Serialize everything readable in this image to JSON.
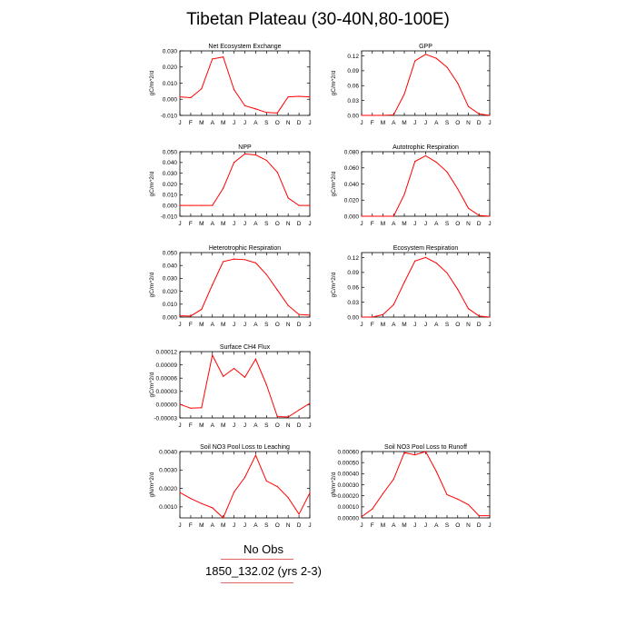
{
  "title": "Tibetan Plateau (30-40N,80-100E)",
  "footer": {
    "line1": "No Obs",
    "line2": "1850_132.02 (yrs 2-3)"
  },
  "colors": {
    "line": "#ff0000",
    "rule": "#e06666",
    "axis": "#000000"
  },
  "chart_data": [
    {
      "type": "line",
      "title": "Net Ecosystem Exchange",
      "ylabel": "gC/m^2/d",
      "categories": [
        "J",
        "F",
        "M",
        "A",
        "M",
        "J",
        "J",
        "A",
        "S",
        "O",
        "N",
        "D",
        "J"
      ],
      "ylim": [
        -0.01,
        0.03
      ],
      "yticks": [
        "0.030",
        "0.020",
        "0.010",
        "0.000",
        "-0.010"
      ],
      "values": [
        0.0015,
        0.001,
        0.0065,
        0.025,
        0.0262,
        0.006,
        -0.004,
        -0.006,
        -0.0082,
        -0.0085,
        0.0015,
        0.0018,
        0.0015
      ]
    },
    {
      "type": "line",
      "title": "GPP",
      "ylabel": "gC/m^2/d",
      "categories": [
        "J",
        "F",
        "M",
        "A",
        "M",
        "J",
        "J",
        "A",
        "S",
        "O",
        "N",
        "D",
        "J"
      ],
      "ylim": [
        0,
        0.13
      ],
      "yticks": [
        "0.12",
        "0.09",
        "0.06",
        "0.03",
        "0.00"
      ],
      "values": [
        0.0,
        0.0,
        0.0,
        0.001,
        0.043,
        0.11,
        0.123,
        0.115,
        0.097,
        0.065,
        0.018,
        0.003,
        0.0
      ]
    },
    {
      "type": "line",
      "title": "NPP",
      "ylabel": "gC/m^2/d",
      "categories": [
        "J",
        "F",
        "M",
        "A",
        "M",
        "J",
        "J",
        "A",
        "S",
        "O",
        "N",
        "D",
        "J"
      ],
      "ylim": [
        -0.01,
        0.05
      ],
      "yticks": [
        "0.050",
        "0.040",
        "0.030",
        "0.020",
        "0.010",
        "0.000",
        "-0.010"
      ],
      "values": [
        0.0,
        0.0,
        0.0,
        0.0,
        0.016,
        0.04,
        0.048,
        0.047,
        0.042,
        0.031,
        0.007,
        0.0,
        0.0
      ]
    },
    {
      "type": "line",
      "title": "Autotrophic Respiration",
      "ylabel": "gC/m^2/d",
      "categories": [
        "J",
        "F",
        "M",
        "A",
        "M",
        "J",
        "J",
        "A",
        "S",
        "O",
        "N",
        "D",
        "J"
      ],
      "ylim": [
        0,
        0.08
      ],
      "yticks": [
        "0.080",
        "0.060",
        "0.040",
        "0.020",
        "0.000"
      ],
      "values": [
        0.0,
        0.0,
        0.0,
        0.0,
        0.027,
        0.068,
        0.075,
        0.067,
        0.055,
        0.034,
        0.01,
        0.001,
        0.0
      ]
    },
    {
      "type": "line",
      "title": "Heterotrophic Respiration",
      "ylabel": "gC/m^2/d",
      "categories": [
        "J",
        "F",
        "M",
        "A",
        "M",
        "J",
        "J",
        "A",
        "S",
        "O",
        "N",
        "D",
        "J"
      ],
      "ylim": [
        0,
        0.05
      ],
      "yticks": [
        "0.050",
        "0.040",
        "0.030",
        "0.020",
        "0.010",
        "0.000"
      ],
      "values": [
        0.001,
        0.0008,
        0.006,
        0.025,
        0.043,
        0.045,
        0.0445,
        0.042,
        0.033,
        0.021,
        0.009,
        0.002,
        0.0015
      ]
    },
    {
      "type": "line",
      "title": "Ecosystem Respiration",
      "ylabel": "gC/m^2/d",
      "categories": [
        "J",
        "F",
        "M",
        "A",
        "M",
        "J",
        "J",
        "A",
        "S",
        "O",
        "N",
        "D",
        "J"
      ],
      "ylim": [
        0,
        0.13
      ],
      "yticks": [
        "0.12",
        "0.09",
        "0.06",
        "0.03",
        "0.00"
      ],
      "values": [
        0.0,
        0.0,
        0.005,
        0.025,
        0.07,
        0.113,
        0.12,
        0.109,
        0.089,
        0.056,
        0.017,
        0.002,
        0.0
      ]
    },
    {
      "type": "line",
      "title": "Surface CH4 Flux",
      "ylabel": "gC/m^2/d",
      "categories": [
        "J",
        "F",
        "M",
        "A",
        "M",
        "J",
        "J",
        "A",
        "S",
        "O",
        "N",
        "D",
        "J"
      ],
      "ylim": [
        -3e-05,
        0.00012
      ],
      "yticks": [
        "0.00012",
        "0.00009",
        "0.00006",
        "0.00003",
        "0.00000",
        "-0.00003"
      ],
      "values": [
        1e-06,
        -8e-06,
        -7e-06,
        0.000112,
        6.4e-05,
        8.2e-05,
        6.2e-05,
        0.000103,
        4.5e-05,
        -2.7e-05,
        -2.8e-05,
        -1.2e-05,
        3e-06
      ]
    },
    {
      "type": "line",
      "title": "Soil NO3 Pool Loss to Leaching",
      "ylabel": "gN/m^2/d",
      "categories": [
        "J",
        "F",
        "M",
        "A",
        "M",
        "J",
        "J",
        "A",
        "S",
        "O",
        "N",
        "D",
        "J"
      ],
      "ylim": [
        0.0004,
        0.004
      ],
      "yticks": [
        "0.0040",
        "0.0030",
        "0.0020",
        "0.0010"
      ],
      "values": [
        0.00178,
        0.00145,
        0.00118,
        0.00095,
        0.0004,
        0.0018,
        0.0026,
        0.0038,
        0.0024,
        0.0021,
        0.0015,
        0.0006,
        0.00175
      ]
    },
    {
      "type": "line",
      "title": "Soil NO3 Pool Loss to Runoff",
      "ylabel": "gN/m^2/d",
      "categories": [
        "J",
        "F",
        "M",
        "A",
        "M",
        "J",
        "J",
        "A",
        "S",
        "O",
        "N",
        "D",
        "J"
      ],
      "ylim": [
        0,
        0.0006
      ],
      "yticks": [
        "0.00060",
        "0.00050",
        "0.00040",
        "0.00030",
        "0.00020",
        "0.00010",
        "0.00000"
      ],
      "values": [
        1e-05,
        8e-05,
        0.00022,
        0.00035,
        0.00059,
        0.00057,
        0.0006,
        0.00042,
        0.00021,
        0.00017,
        0.00012,
        2e-05,
        2e-05
      ]
    }
  ]
}
